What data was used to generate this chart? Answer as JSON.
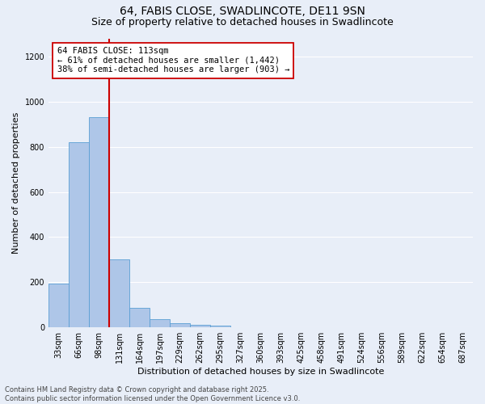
{
  "title_line1": "64, FABIS CLOSE, SWADLINCOTE, DE11 9SN",
  "title_line2": "Size of property relative to detached houses in Swadlincote",
  "xlabel": "Distribution of detached houses by size in Swadlincote",
  "ylabel": "Number of detached properties",
  "categories": [
    "33sqm",
    "66sqm",
    "98sqm",
    "131sqm",
    "164sqm",
    "197sqm",
    "229sqm",
    "262sqm",
    "295sqm",
    "327sqm",
    "360sqm",
    "393sqm",
    "425sqm",
    "458sqm",
    "491sqm",
    "524sqm",
    "556sqm",
    "589sqm",
    "622sqm",
    "654sqm",
    "687sqm"
  ],
  "values": [
    195,
    820,
    930,
    300,
    85,
    35,
    18,
    12,
    8,
    0,
    0,
    0,
    0,
    0,
    0,
    0,
    0,
    0,
    0,
    0,
    0
  ],
  "bar_color": "#aec6e8",
  "bar_edge_color": "#5a9fd4",
  "vline_x": 2.5,
  "vline_color": "#cc0000",
  "annotation_text": "64 FABIS CLOSE: 113sqm\n← 61% of detached houses are smaller (1,442)\n38% of semi-detached houses are larger (903) →",
  "annotation_box_color": "#ffffff",
  "annotation_box_edge": "#cc0000",
  "ylim": [
    0,
    1280
  ],
  "yticks": [
    0,
    200,
    400,
    600,
    800,
    1000,
    1200
  ],
  "background_color": "#e8eef8",
  "grid_color": "#ffffff",
  "footer_line1": "Contains HM Land Registry data © Crown copyright and database right 2025.",
  "footer_line2": "Contains public sector information licensed under the Open Government Licence v3.0.",
  "title_fontsize": 10,
  "subtitle_fontsize": 9,
  "label_fontsize": 8,
  "tick_fontsize": 7,
  "annot_fontsize": 7.5,
  "footer_fontsize": 6
}
